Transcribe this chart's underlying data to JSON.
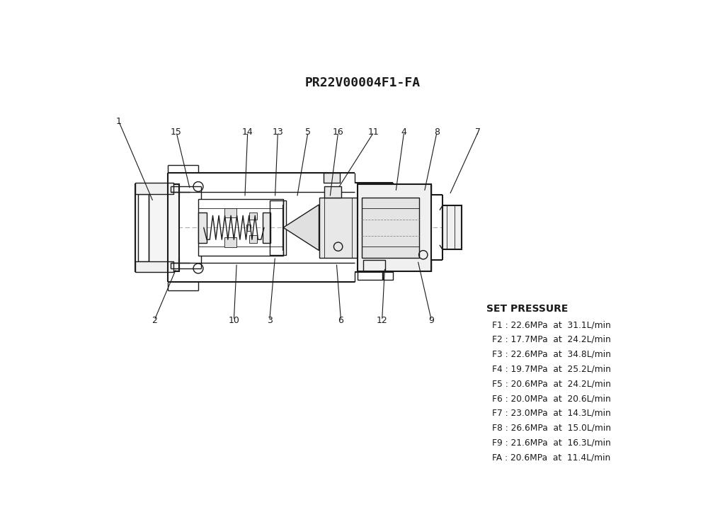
{
  "title": "PR22V00004F1-FA",
  "bg_color": "#ffffff",
  "line_color": "#1a1a1a",
  "set_pressure_title": "SET PRESSURE",
  "pressure_entries": [
    [
      "F1",
      "22.6MPa",
      "31.1L/min"
    ],
    [
      "F2",
      "17.7MPa",
      "24.2L/min"
    ],
    [
      "F3",
      "22.6MPa",
      "34.8L/min"
    ],
    [
      "F4",
      "19.7MPa",
      "25.2L/min"
    ],
    [
      "F5",
      "20.6MPa",
      "24.2L/min"
    ],
    [
      "F6",
      "20.0MPa",
      "20.6L/min"
    ],
    [
      "F7",
      "23.0MPa",
      "14.3L/min"
    ],
    [
      "F8",
      "26.6MPa",
      "15.0L/min"
    ],
    [
      "F9",
      "21.6MPa",
      "16.3L/min"
    ],
    [
      "FA",
      "20.6MPa",
      "11.4L/min"
    ]
  ],
  "top_labels": [
    [
      "1",
      55,
      110
    ],
    [
      "15",
      160,
      130
    ],
    [
      "14",
      290,
      130
    ],
    [
      "13",
      345,
      130
    ],
    [
      "5",
      400,
      130
    ],
    [
      "16",
      455,
      130
    ],
    [
      "11",
      520,
      130
    ],
    [
      "4",
      575,
      130
    ],
    [
      "8",
      635,
      130
    ],
    [
      "7",
      710,
      130
    ]
  ],
  "bot_labels": [
    [
      "2",
      120,
      475
    ],
    [
      "10",
      265,
      475
    ],
    [
      "3",
      330,
      475
    ],
    [
      "6",
      460,
      475
    ],
    [
      "12",
      535,
      475
    ],
    [
      "9",
      625,
      475
    ]
  ]
}
